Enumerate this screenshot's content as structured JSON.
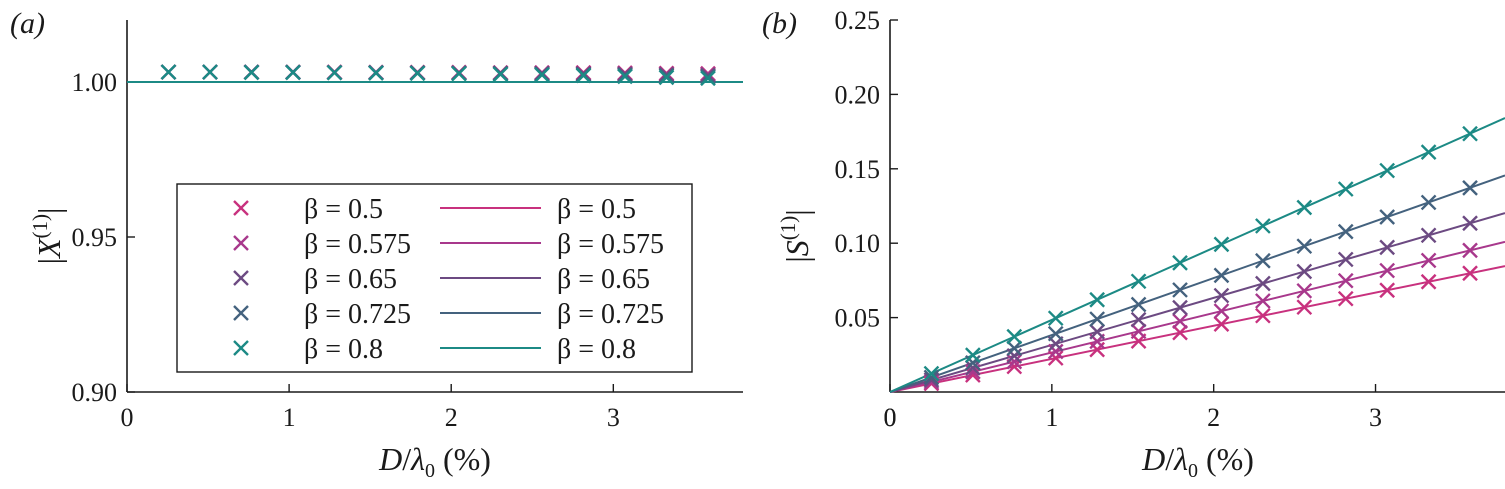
{
  "colors": {
    "beta_0.5": "#c8317e",
    "beta_0.575": "#a8388c",
    "beta_0.65": "#6c4a82",
    "beta_0.725": "#44627e",
    "beta_0.8": "#1c8a85",
    "axis": "#1a1a1a"
  },
  "chart_data": [
    {
      "panel": "(a)",
      "type": "scatter",
      "xlabel": "D/λ0 (%)",
      "ylabel": "|X(1)|",
      "xlim": [
        0,
        3.8
      ],
      "ylim": [
        0.9,
        1.02
      ],
      "xticks": [
        0,
        1,
        2,
        3
      ],
      "xtick_labels": [
        "0",
        "1",
        "2",
        "3"
      ],
      "yticks": [
        0.9,
        0.95,
        1.0
      ],
      "ytick_labels": [
        "0.90",
        "0.95",
        "1.00"
      ],
      "legend_position": "lower-center",
      "legend_marker_labels": [
        "β = 0.5",
        "β = 0.575",
        "β = 0.65",
        "β = 0.725",
        "β = 0.8"
      ],
      "legend_line_labels": [
        "β = 0.5",
        "β = 0.575",
        "β = 0.65",
        "β = 0.725",
        "β = 0.8"
      ],
      "x": [
        0.256,
        0.512,
        0.768,
        1.024,
        1.28,
        1.536,
        1.792,
        2.048,
        2.304,
        2.56,
        2.816,
        3.072,
        3.328,
        3.584
      ],
      "series": [
        {
          "name": "β = 0.5",
          "kind": "marker",
          "color_key": "beta_0.5",
          "values": [
            1.0032,
            1.0032,
            1.0032,
            1.0032,
            1.0032,
            1.0031,
            1.0031,
            1.0031,
            1.003,
            1.003,
            1.003,
            1.0029,
            1.0028,
            1.0027
          ]
        },
        {
          "name": "β = 0.575",
          "kind": "marker",
          "color_key": "beta_0.575",
          "values": [
            1.0032,
            1.0032,
            1.0032,
            1.0032,
            1.0031,
            1.0031,
            1.003,
            1.003,
            1.0029,
            1.0029,
            1.0028,
            1.0027,
            1.0026,
            1.0025
          ]
        },
        {
          "name": "β = 0.65",
          "kind": "marker",
          "color_key": "beta_0.65",
          "values": [
            1.0032,
            1.0032,
            1.0032,
            1.0031,
            1.0031,
            1.003,
            1.003,
            1.0029,
            1.0028,
            1.0027,
            1.0026,
            1.0025,
            1.0023,
            1.0021
          ]
        },
        {
          "name": "β = 0.725",
          "kind": "marker",
          "color_key": "beta_0.725",
          "values": [
            1.0032,
            1.0032,
            1.0031,
            1.0031,
            1.003,
            1.003,
            1.0029,
            1.0028,
            1.0027,
            1.0025,
            1.0024,
            1.0022,
            1.002,
            1.0017
          ]
        },
        {
          "name": "β = 0.8",
          "kind": "marker",
          "color_key": "beta_0.8",
          "values": [
            1.0032,
            1.0032,
            1.0031,
            1.0031,
            1.003,
            1.0029,
            1.0028,
            1.0027,
            1.0025,
            1.0023,
            1.0021,
            1.0018,
            1.0015,
            1.0012
          ]
        },
        {
          "name": "β = 0.5",
          "kind": "line",
          "color_key": "beta_0.5",
          "x": [
            0,
            3.8
          ],
          "values": [
            1.0,
            1.0
          ]
        },
        {
          "name": "β = 0.575",
          "kind": "line",
          "color_key": "beta_0.575",
          "x": [
            0,
            3.8
          ],
          "values": [
            1.0,
            1.0
          ]
        },
        {
          "name": "β = 0.65",
          "kind": "line",
          "color_key": "beta_0.65",
          "x": [
            0,
            3.8
          ],
          "values": [
            1.0,
            1.0
          ]
        },
        {
          "name": "β = 0.725",
          "kind": "line",
          "color_key": "beta_0.725",
          "x": [
            0,
            3.8
          ],
          "values": [
            1.0,
            1.0
          ]
        },
        {
          "name": "β = 0.8",
          "kind": "line",
          "color_key": "beta_0.8",
          "x": [
            0,
            3.8
          ],
          "values": [
            1.0,
            1.0
          ]
        }
      ]
    },
    {
      "panel": "(b)",
      "type": "scatter",
      "xlabel": "D/λ0 (%)",
      "ylabel": "|S(1)|",
      "xlim": [
        0,
        3.8
      ],
      "ylim": [
        0,
        0.25
      ],
      "xticks": [
        0,
        1,
        2,
        3
      ],
      "xtick_labels": [
        "0",
        "1",
        "2",
        "3"
      ],
      "yticks": [
        0.05,
        0.1,
        0.15,
        0.2,
        0.25
      ],
      "ytick_labels": [
        "0.05",
        "0.10",
        "0.15",
        "0.20",
        "0.25"
      ],
      "x": [
        0.256,
        0.512,
        0.768,
        1.024,
        1.28,
        1.536,
        1.792,
        2.048,
        2.304,
        2.56,
        2.816,
        3.072,
        3.328,
        3.584
      ],
      "series": [
        {
          "name": "β = 0.5",
          "kind": "marker",
          "color_key": "beta_0.5",
          "values": [
            0.0057,
            0.0114,
            0.0171,
            0.0228,
            0.0285,
            0.0342,
            0.0399,
            0.0456,
            0.0513,
            0.057,
            0.0627,
            0.0684,
            0.0741,
            0.0798
          ]
        },
        {
          "name": "β = 0.575",
          "kind": "marker",
          "color_key": "beta_0.575",
          "values": [
            0.0068,
            0.0136,
            0.0204,
            0.0272,
            0.034,
            0.0408,
            0.0476,
            0.0544,
            0.0612,
            0.068,
            0.0748,
            0.0816,
            0.0884,
            0.0952
          ]
        },
        {
          "name": "β = 0.65",
          "kind": "marker",
          "color_key": "beta_0.65",
          "values": [
            0.0081,
            0.0162,
            0.0243,
            0.0324,
            0.0405,
            0.0486,
            0.0567,
            0.0648,
            0.0729,
            0.081,
            0.0891,
            0.0972,
            0.1053,
            0.1134
          ]
        },
        {
          "name": "β = 0.725",
          "kind": "marker",
          "color_key": "beta_0.725",
          "values": [
            0.0098,
            0.0196,
            0.0294,
            0.0392,
            0.049,
            0.0588,
            0.0686,
            0.0784,
            0.0882,
            0.098,
            0.1078,
            0.1176,
            0.1274,
            0.1372
          ]
        },
        {
          "name": "β = 0.8",
          "kind": "marker",
          "color_key": "beta_0.8",
          "values": [
            0.0124,
            0.0248,
            0.0372,
            0.0496,
            0.062,
            0.0744,
            0.0868,
            0.0992,
            0.1116,
            0.124,
            0.1364,
            0.1488,
            0.1612,
            0.1736
          ]
        },
        {
          "name": "β = 0.5",
          "kind": "line",
          "color_key": "beta_0.5",
          "x": [
            0,
            3.8
          ],
          "values": [
            0,
            0.0846
          ]
        },
        {
          "name": "β = 0.575",
          "kind": "line",
          "color_key": "beta_0.575",
          "x": [
            0,
            3.8
          ],
          "values": [
            0,
            0.1009
          ]
        },
        {
          "name": "β = 0.65",
          "kind": "line",
          "color_key": "beta_0.65",
          "x": [
            0,
            3.8
          ],
          "values": [
            0,
            0.1202
          ]
        },
        {
          "name": "β = 0.725",
          "kind": "line",
          "color_key": "beta_0.725",
          "x": [
            0,
            3.8
          ],
          "values": [
            0,
            0.1455
          ]
        },
        {
          "name": "β = 0.8",
          "kind": "line",
          "color_key": "beta_0.8",
          "x": [
            0,
            3.8
          ],
          "values": [
            0,
            0.1841
          ]
        }
      ]
    }
  ]
}
